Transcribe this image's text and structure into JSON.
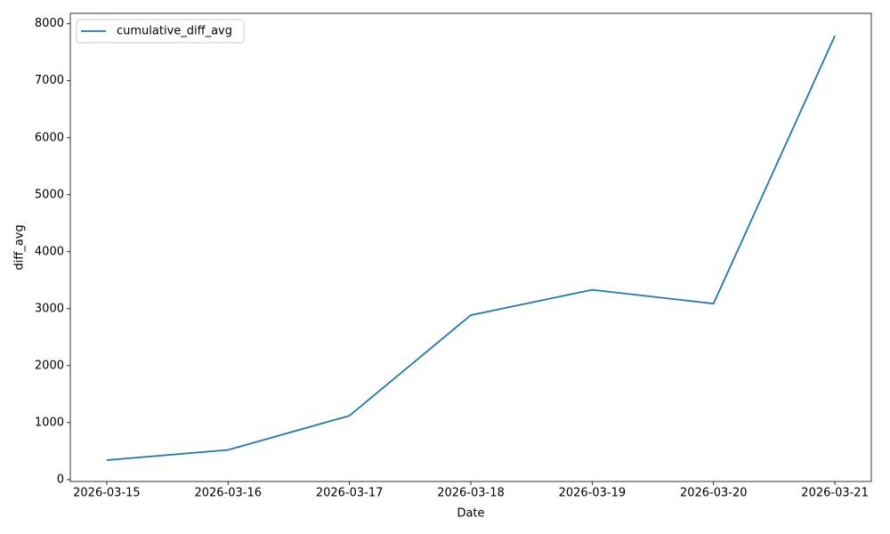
{
  "chart_data": {
    "type": "line",
    "x": [
      "2026-03-15",
      "2026-03-16",
      "2026-03-17",
      "2026-03-18",
      "2026-03-19",
      "2026-03-20",
      "2026-03-21"
    ],
    "series": [
      {
        "name": "cumulative_diff_avg",
        "color": "#1f77b4",
        "values": [
          342,
          521,
          1121,
          2887,
          3331,
          3089,
          7790
        ]
      }
    ],
    "xlabel": "Date",
    "ylabel": "diff_avg",
    "ylim": [
      -33,
      8183
    ],
    "yticks": [
      0,
      1000,
      2000,
      3000,
      4000,
      5000,
      6000,
      7000,
      8000
    ],
    "legend": "upper left"
  }
}
